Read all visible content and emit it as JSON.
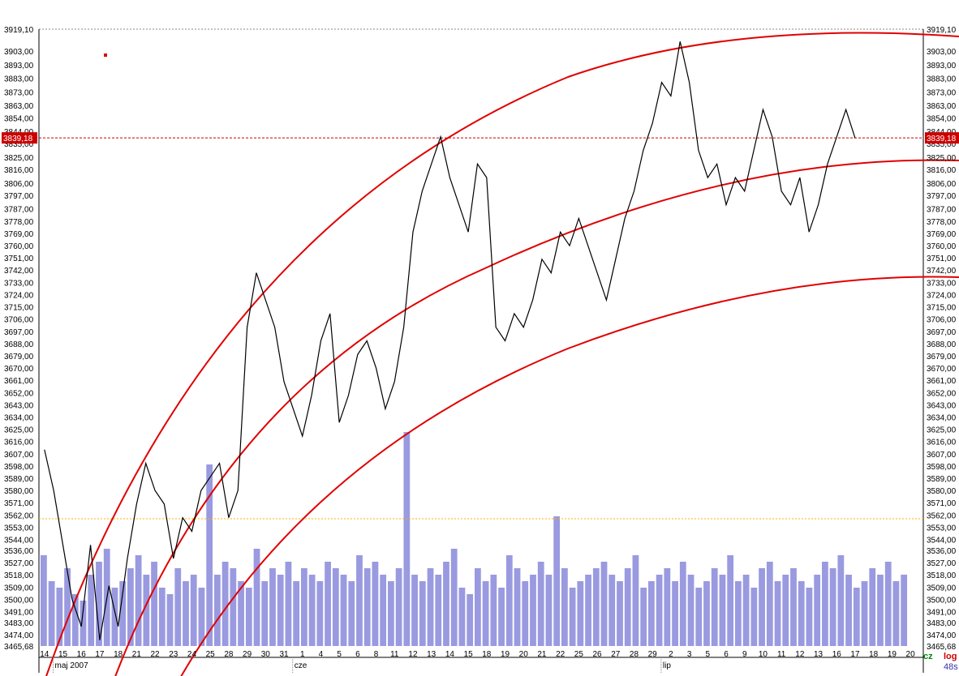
{
  "chart_data": {
    "type": "line",
    "price_labels": [
      "3919,10",
      "3903,00",
      "3893,00",
      "3883,00",
      "3873,00",
      "3863,00",
      "3854,00",
      "3844,00",
      "3835,00",
      "3825,00",
      "3816,00",
      "3806,00",
      "3797,00",
      "3787,00",
      "3778,00",
      "3769,00",
      "3760,00",
      "3751,00",
      "3742,00",
      "3733,00",
      "3724,00",
      "3715,00",
      "3706,00",
      "3697,00",
      "3688,00",
      "3679,00",
      "3670,00",
      "3661,00",
      "3652,00",
      "3643,00",
      "3634,00",
      "3625,00",
      "3616,00",
      "3607,00",
      "3598,00",
      "3589,00",
      "3580,00",
      "3571,00",
      "3562,00",
      "3553,00",
      "3544,00",
      "3536,00",
      "3527,00",
      "3518,00",
      "3509,00",
      "3500,00",
      "3491,00",
      "3483,00",
      "3474,00",
      "3465,68"
    ],
    "y_range": [
      3465.68,
      3919.1
    ],
    "current_price": {
      "label": "3839,18",
      "value": 3839.18
    },
    "x_days": [
      "14",
      "15",
      "16",
      "17",
      "18",
      "21",
      "22",
      "23",
      "24",
      "25",
      "28",
      "29",
      "30",
      "31",
      "1",
      "4",
      "5",
      "6",
      "8",
      "11",
      "12",
      "13",
      "14",
      "15",
      "18",
      "19",
      "20",
      "21",
      "22",
      "25",
      "26",
      "27",
      "28",
      "29",
      "2",
      "3",
      "5",
      "6",
      "9",
      "10",
      "11",
      "12",
      "13",
      "16",
      "17",
      "18",
      "19",
      "20"
    ],
    "month_labels": [
      {
        "label": "maj 2007",
        "day_index": 1
      },
      {
        "label": "cze",
        "day_index": 14
      },
      {
        "label": "lip",
        "day_index": 34
      }
    ],
    "price_series": [
      [
        0,
        3610
      ],
      [
        0.5,
        3580
      ],
      [
        1,
        3540
      ],
      [
        1.5,
        3500
      ],
      [
        2,
        3480
      ],
      [
        2.5,
        3540
      ],
      [
        3,
        3470
      ],
      [
        3.5,
        3510
      ],
      [
        4,
        3480
      ],
      [
        4.5,
        3530
      ],
      [
        5,
        3570
      ],
      [
        5.5,
        3600
      ],
      [
        6,
        3580
      ],
      [
        6.5,
        3570
      ],
      [
        7,
        3530
      ],
      [
        7.5,
        3560
      ],
      [
        8,
        3550
      ],
      [
        8.5,
        3580
      ],
      [
        9,
        3590
      ],
      [
        9.5,
        3600
      ],
      [
        10,
        3560
      ],
      [
        10.5,
        3580
      ],
      [
        11,
        3700
      ],
      [
        11.5,
        3740
      ],
      [
        12,
        3720
      ],
      [
        12.5,
        3700
      ],
      [
        13,
        3660
      ],
      [
        13.5,
        3640
      ],
      [
        14,
        3620
      ],
      [
        14.5,
        3650
      ],
      [
        15,
        3690
      ],
      [
        15.5,
        3710
      ],
      [
        16,
        3630
      ],
      [
        16.5,
        3650
      ],
      [
        17,
        3680
      ],
      [
        17.5,
        3690
      ],
      [
        18,
        3670
      ],
      [
        18.5,
        3640
      ],
      [
        19,
        3660
      ],
      [
        19.5,
        3700
      ],
      [
        20,
        3770
      ],
      [
        20.5,
        3800
      ],
      [
        21,
        3820
      ],
      [
        21.5,
        3840
      ],
      [
        22,
        3810
      ],
      [
        22.5,
        3790
      ],
      [
        23,
        3770
      ],
      [
        23.5,
        3820
      ],
      [
        24,
        3810
      ],
      [
        24.5,
        3700
      ],
      [
        25,
        3690
      ],
      [
        25.5,
        3710
      ],
      [
        26,
        3700
      ],
      [
        26.5,
        3720
      ],
      [
        27,
        3750
      ],
      [
        27.5,
        3740
      ],
      [
        28,
        3770
      ],
      [
        28.5,
        3760
      ],
      [
        29,
        3780
      ],
      [
        29.5,
        3760
      ],
      [
        30,
        3740
      ],
      [
        30.5,
        3720
      ],
      [
        31,
        3750
      ],
      [
        31.5,
        3780
      ],
      [
        32,
        3800
      ],
      [
        32.5,
        3830
      ],
      [
        33,
        3850
      ],
      [
        33.5,
        3880
      ],
      [
        34,
        3870
      ],
      [
        34.5,
        3910
      ],
      [
        35,
        3880
      ],
      [
        35.5,
        3830
      ],
      [
        36,
        3810
      ],
      [
        36.5,
        3820
      ],
      [
        37,
        3790
      ],
      [
        37.5,
        3810
      ],
      [
        38,
        3800
      ],
      [
        38.5,
        3830
      ],
      [
        39,
        3860
      ],
      [
        39.5,
        3840
      ],
      [
        40,
        3800
      ],
      [
        40.5,
        3790
      ],
      [
        41,
        3810
      ],
      [
        41.5,
        3770
      ],
      [
        42,
        3790
      ],
      [
        42.5,
        3820
      ],
      [
        43,
        3840
      ],
      [
        43.5,
        3860
      ],
      [
        44,
        3839
      ]
    ],
    "volume_series": [
      140,
      100,
      90,
      120,
      80,
      70,
      110,
      130,
      150,
      90,
      100,
      120,
      140,
      110,
      130,
      90,
      80,
      120,
      100,
      110,
      90,
      280,
      110,
      130,
      120,
      100,
      90,
      150,
      100,
      120,
      110,
      130,
      100,
      120,
      110,
      100,
      130,
      120,
      110,
      100,
      140,
      120,
      130,
      110,
      100,
      120,
      330,
      110,
      100,
      120,
      110,
      130,
      150,
      90,
      80,
      120,
      100,
      110,
      90,
      140,
      120,
      100,
      110,
      130,
      110,
      200,
      120,
      90,
      100,
      110,
      120,
      130,
      110,
      100,
      120,
      140,
      90,
      100,
      110,
      120,
      100,
      130,
      110,
      90,
      100,
      120,
      110,
      140,
      100,
      110,
      90,
      120,
      130,
      100,
      110,
      120,
      100,
      90,
      110,
      130,
      120,
      140,
      110,
      90,
      100,
      120,
      110,
      130,
      100,
      110
    ]
  },
  "legend": {
    "cz": "cz",
    "log": "log",
    "time": "48s"
  }
}
